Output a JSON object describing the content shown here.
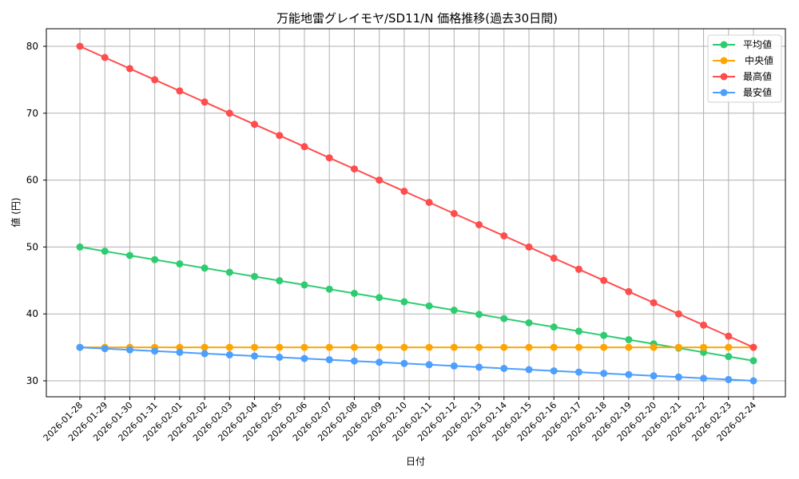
{
  "chart_data": {
    "type": "line",
    "title": "万能地雷グレイモヤ/SD11/N 価格推移(過去30日間)",
    "xlabel": "日付",
    "ylabel": "値 (円)",
    "ylim": [
      27.5,
      82.5
    ],
    "yticks": [
      30,
      40,
      50,
      60,
      70,
      80
    ],
    "grid": true,
    "legend_position": "upper right",
    "x": [
      "2026-01-28",
      "2026-01-29",
      "2026-01-30",
      "2026-01-31",
      "2026-02-01",
      "2026-02-02",
      "2026-02-03",
      "2026-02-04",
      "2026-02-05",
      "2026-02-06",
      "2026-02-07",
      "2026-02-08",
      "2026-02-09",
      "2026-02-10",
      "2026-02-11",
      "2026-02-12",
      "2026-02-13",
      "2026-02-14",
      "2026-02-15",
      "2026-02-16",
      "2026-02-17",
      "2026-02-18",
      "2026-02-19",
      "2026-02-20",
      "2026-02-21",
      "2026-02-22",
      "2026-02-23",
      "2026-02-24"
    ],
    "series": [
      {
        "name": "平均値",
        "color": "#2ecc71",
        "values": [
          50.0,
          49.37,
          48.74,
          48.11,
          47.48,
          46.85,
          46.22,
          45.59,
          44.96,
          44.33,
          43.7,
          43.07,
          42.44,
          41.81,
          41.19,
          40.56,
          39.93,
          39.3,
          38.67,
          38.04,
          37.41,
          36.78,
          36.15,
          35.52,
          34.89,
          34.26,
          33.63,
          33.0
        ]
      },
      {
        "name": "中央値",
        "color": "#ffa500",
        "values": [
          35,
          35,
          35,
          35,
          35,
          35,
          35,
          35,
          35,
          35,
          35,
          35,
          35,
          35,
          35,
          35,
          35,
          35,
          35,
          35,
          35,
          35,
          35,
          35,
          35,
          35,
          35,
          35
        ]
      },
      {
        "name": "最高値",
        "color": "#ff4d4d",
        "values": [
          80.0,
          78.33,
          76.67,
          75.0,
          73.33,
          71.67,
          70.0,
          68.33,
          66.67,
          65.0,
          63.33,
          61.67,
          60.0,
          58.33,
          56.67,
          55.0,
          53.33,
          51.67,
          50.0,
          48.33,
          46.67,
          45.0,
          43.33,
          41.67,
          40.0,
          38.33,
          36.67,
          35.0
        ]
      },
      {
        "name": "最安値",
        "color": "#4d9fff",
        "values": [
          35.0,
          34.81,
          34.63,
          34.44,
          34.26,
          34.07,
          33.89,
          33.7,
          33.52,
          33.33,
          33.15,
          32.96,
          32.78,
          32.59,
          32.41,
          32.22,
          32.04,
          31.85,
          31.67,
          31.48,
          31.3,
          31.11,
          30.93,
          30.74,
          30.56,
          30.37,
          30.19,
          30.0
        ]
      }
    ]
  }
}
